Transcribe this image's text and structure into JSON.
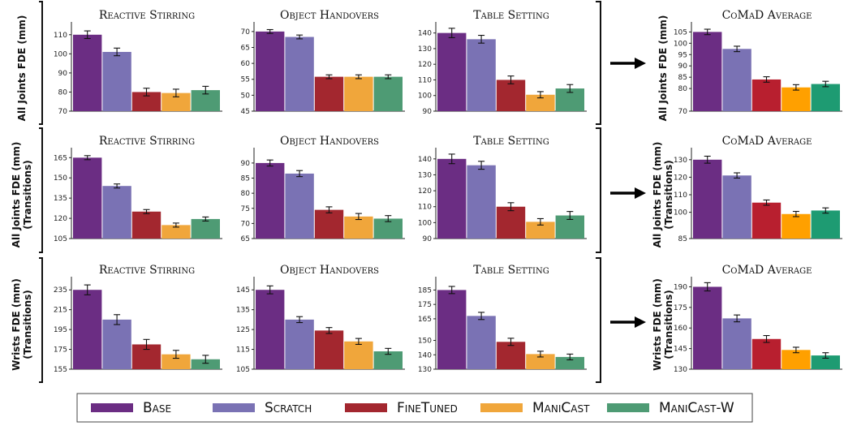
{
  "colors": {
    "base": "#6b2d83",
    "scratch": "#7a72b4",
    "finetuned": "#a3272f",
    "manicast": "#f0a63b",
    "manicast_w": "#4e9b74",
    "avg_finetuned": "#b81f2f",
    "avg_manicast": "#ffa000",
    "avg_manicast_w": "#1e9b72"
  },
  "legend": {
    "items": [
      {
        "label": "Base",
        "color": "#6b2d83"
      },
      {
        "label": "Scratch",
        "color": "#7a72b4"
      },
      {
        "label": "FineTuned",
        "color": "#a3272f"
      },
      {
        "label": "ManiCast",
        "color": "#f0a63b"
      },
      {
        "label": "ManiCast-W",
        "color": "#4e9b74"
      }
    ]
  },
  "row_labels": [
    [
      "All Joints FDE (mm)"
    ],
    [
      "All Joints FDE (mm)",
      "(Transitions)"
    ],
    [
      "Wrists FDE (mm)",
      "(Transitions)"
    ]
  ],
  "chart_data": [
    {
      "type": "bar",
      "row": 0,
      "col": 0,
      "title": "Reactive Stirring",
      "categories": [
        "Base",
        "Scratch",
        "FineTuned",
        "ManiCast",
        "ManiCast-W"
      ],
      "values": [
        110,
        101,
        80,
        79.5,
        81
      ],
      "errors": [
        2,
        2,
        2,
        2,
        2
      ],
      "ylim": [
        70,
        115
      ],
      "yticks": [
        70,
        80,
        90,
        100,
        110
      ]
    },
    {
      "type": "bar",
      "row": 0,
      "col": 1,
      "title": "Object Handovers",
      "categories": [
        "Base",
        "Scratch",
        "FineTuned",
        "ManiCast",
        "ManiCast-W"
      ],
      "values": [
        70,
        68.3,
        55.8,
        55.8,
        55.8
      ],
      "errors": [
        0.6,
        0.6,
        0.6,
        0.6,
        0.6
      ],
      "ylim": [
        45,
        72
      ],
      "yticks": [
        45,
        50,
        55,
        60,
        65,
        70
      ]
    },
    {
      "type": "bar",
      "row": 0,
      "col": 2,
      "title": "Table Setting",
      "categories": [
        "Base",
        "Scratch",
        "FineTuned",
        "ManiCast",
        "ManiCast-W"
      ],
      "values": [
        140,
        136,
        110,
        100.5,
        104.5
      ],
      "errors": [
        3,
        2.5,
        2.5,
        2,
        2.5
      ],
      "ylim": [
        90,
        145
      ],
      "yticks": [
        90,
        100,
        110,
        120,
        130,
        140
      ]
    },
    {
      "type": "bar",
      "row": 0,
      "col": 3,
      "title": "CoMaD Average",
      "average": true,
      "categories": [
        "Base",
        "Scratch",
        "FineTuned",
        "ManiCast",
        "ManiCast-W"
      ],
      "values": [
        105,
        97.5,
        84,
        80.5,
        82
      ],
      "errors": [
        1.2,
        1.2,
        1.2,
        1.2,
        1.2
      ],
      "ylim": [
        70,
        108
      ],
      "yticks": [
        70,
        80,
        85,
        90,
        95,
        100,
        105
      ]
    },
    {
      "type": "bar",
      "row": 1,
      "col": 0,
      "title": "Reactive Stirring",
      "categories": [
        "Base",
        "Scratch",
        "FineTuned",
        "ManiCast",
        "ManiCast-W"
      ],
      "values": [
        165,
        144,
        125,
        115,
        119.5
      ],
      "errors": [
        1.5,
        1.5,
        1.5,
        1.5,
        1.5
      ],
      "ylim": [
        105,
        170
      ],
      "yticks": [
        105,
        120,
        135,
        150,
        165
      ]
    },
    {
      "type": "bar",
      "row": 1,
      "col": 1,
      "title": "Object Handovers",
      "categories": [
        "Base",
        "Scratch",
        "FineTuned",
        "ManiCast",
        "ManiCast-W"
      ],
      "values": [
        90,
        86.5,
        74.5,
        72.3,
        71.6
      ],
      "errors": [
        1,
        1,
        1,
        1,
        1
      ],
      "ylim": [
        65,
        94
      ],
      "yticks": [
        65,
        70,
        75,
        80,
        85,
        90
      ]
    },
    {
      "type": "bar",
      "row": 1,
      "col": 2,
      "title": "Table Setting",
      "categories": [
        "Base",
        "Scratch",
        "FineTuned",
        "ManiCast",
        "ManiCast-W"
      ],
      "values": [
        140,
        136,
        110,
        100.5,
        104.5
      ],
      "errors": [
        3,
        2.5,
        2.5,
        2,
        2.5
      ],
      "ylim": [
        90,
        145
      ],
      "yticks": [
        90,
        100,
        110,
        120,
        130,
        140
      ]
    },
    {
      "type": "bar",
      "row": 1,
      "col": 3,
      "title": "CoMaD Average",
      "average": true,
      "categories": [
        "Base",
        "Scratch",
        "FineTuned",
        "ManiCast",
        "ManiCast-W"
      ],
      "values": [
        130,
        121,
        105.5,
        99,
        101
      ],
      "errors": [
        2,
        1.5,
        1.5,
        1.5,
        1.5
      ],
      "ylim": [
        85,
        135
      ],
      "yticks": [
        85,
        100,
        110,
        120,
        130
      ]
    },
    {
      "type": "bar",
      "row": 2,
      "col": 0,
      "title": "Reactive Stirring",
      "categories": [
        "Base",
        "Scratch",
        "FineTuned",
        "ManiCast",
        "ManiCast-W"
      ],
      "values": [
        235,
        205,
        180,
        170,
        165
      ],
      "errors": [
        5,
        5,
        5,
        4,
        4
      ],
      "ylim": [
        155,
        245
      ],
      "yticks": [
        155,
        175,
        195,
        215,
        235
      ]
    },
    {
      "type": "bar",
      "row": 2,
      "col": 1,
      "title": "Object Handovers",
      "categories": [
        "Base",
        "Scratch",
        "FineTuned",
        "ManiCast",
        "ManiCast-W"
      ],
      "values": [
        145,
        130,
        124.5,
        119,
        114
      ],
      "errors": [
        2,
        1.5,
        1.5,
        1.5,
        1.5
      ],
      "ylim": [
        105,
        150
      ],
      "yticks": [
        105,
        115,
        125,
        135,
        145
      ]
    },
    {
      "type": "bar",
      "row": 2,
      "col": 2,
      "title": "Table Setting",
      "categories": [
        "Base",
        "Scratch",
        "FineTuned",
        "ManiCast",
        "ManiCast-W"
      ],
      "values": [
        185,
        167,
        149,
        140.5,
        138.5
      ],
      "errors": [
        2.5,
        2.5,
        2.5,
        2,
        2
      ],
      "ylim": [
        130,
        192
      ],
      "yticks": [
        130,
        140,
        150,
        165,
        175,
        185
      ]
    },
    {
      "type": "bar",
      "row": 2,
      "col": 3,
      "title": "CoMaD Average",
      "average": true,
      "categories": [
        "Base",
        "Scratch",
        "FineTuned",
        "ManiCast",
        "ManiCast-W"
      ],
      "values": [
        190,
        167,
        152,
        144,
        140
      ],
      "errors": [
        3,
        2.5,
        2.5,
        2,
        2
      ],
      "ylim": [
        130,
        195
      ],
      "yticks": [
        130,
        145,
        160,
        175,
        190
      ]
    }
  ]
}
